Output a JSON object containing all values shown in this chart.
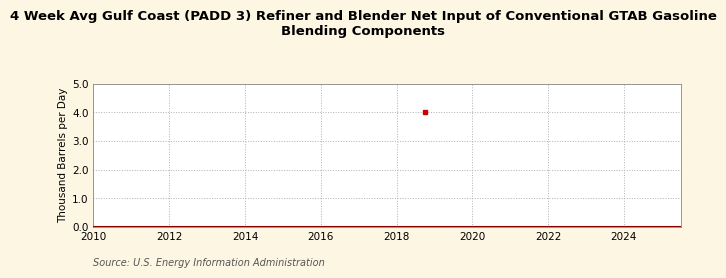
{
  "title_line1": "4 Week Avg Gulf Coast (PADD 3) Refiner and Blender Net Input of Conventional GTAB Gasoline",
  "title_line2": "Blending Components",
  "ylabel": "Thousand Barrels per Day",
  "source": "Source: U.S. Energy Information Administration",
  "background_color": "#fdf6e3",
  "plot_background_color": "#ffffff",
  "xlim": [
    2010,
    2025.5
  ],
  "ylim": [
    0.0,
    5.0
  ],
  "yticks": [
    0.0,
    1.0,
    2.0,
    3.0,
    4.0,
    5.0
  ],
  "xticks": [
    2010,
    2012,
    2014,
    2016,
    2018,
    2020,
    2022,
    2024
  ],
  "line_x": [
    2009.9,
    2025.5
  ],
  "line_y": [
    0.0,
    0.0
  ],
  "line_color": "#8b0000",
  "line_width": 1.5,
  "point_x": 2018.75,
  "point_y": 4.0,
  "point_color": "#cc0000",
  "point_marker": "s",
  "point_size": 3,
  "grid_color": "#b0b0b0",
  "grid_style": "--",
  "title_fontsize": 9.5,
  "ylabel_fontsize": 7.5,
  "tick_fontsize": 7.5,
  "source_fontsize": 7
}
